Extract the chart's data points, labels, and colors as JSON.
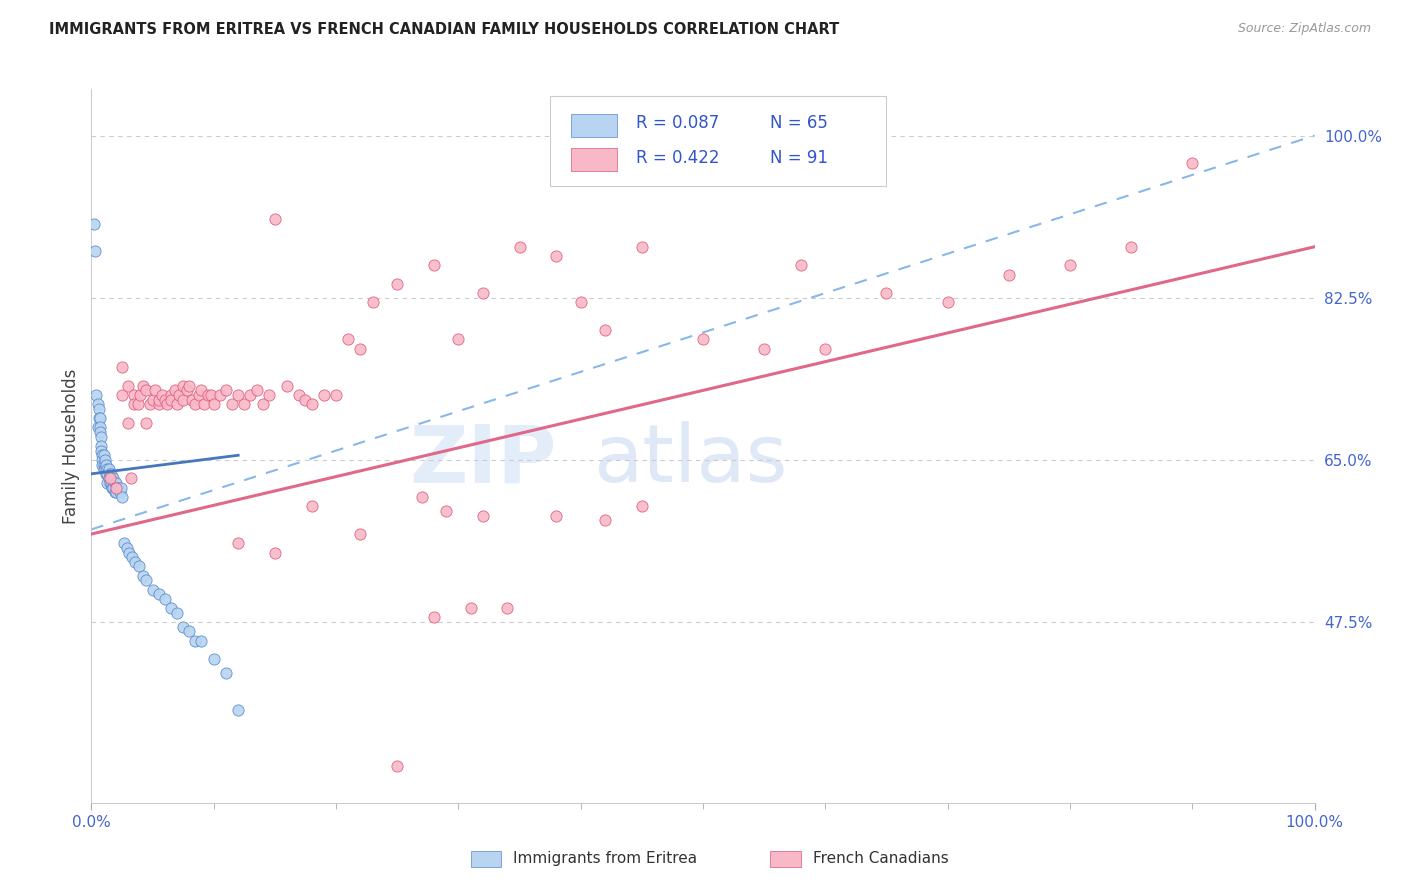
{
  "title": "IMMIGRANTS FROM ERITREA VS FRENCH CANADIAN FAMILY HOUSEHOLDS CORRELATION CHART",
  "source": "Source: ZipAtlas.com",
  "ylabel": "Family Households",
  "y_tick_labels_right": [
    "100.0%",
    "82.5%",
    "65.0%",
    "47.5%"
  ],
  "y_tick_positions_right": [
    1.0,
    0.825,
    0.65,
    0.475
  ],
  "x_tick_labels_left": "0.0%",
  "x_tick_labels_right": "100.0%",
  "legend_line1": "R = 0.087   N = 65",
  "legend_line2": "R = 0.422   N = 91",
  "color_blue_fill": "#b8d4f0",
  "color_blue_edge": "#5588cc",
  "color_pink_fill": "#f8b8c8",
  "color_pink_edge": "#e05878",
  "trendline_dashed_color": "#88b8e8",
  "trendline_solid_color": "#e06888",
  "trendline_blue_solid_color": "#4477bb",
  "watermark_zip": "ZIP",
  "watermark_atlas": "atlas",
  "watermark_color_zip": "#c8ddf0",
  "watermark_color_atlas": "#b8cce8",
  "legend_text_color": "#3355cc",
  "bottom_legend_label1": "Immigrants from Eritrea",
  "bottom_legend_label2": "French Canadians",
  "ylim_data_min": 0.28,
  "ylim_data_max": 1.0,
  "blue_x": [
    0.002,
    0.003,
    0.004,
    0.005,
    0.005,
    0.006,
    0.006,
    0.007,
    0.007,
    0.007,
    0.008,
    0.008,
    0.008,
    0.009,
    0.009,
    0.009,
    0.01,
    0.01,
    0.01,
    0.011,
    0.011,
    0.012,
    0.012,
    0.013,
    0.013,
    0.013,
    0.014,
    0.014,
    0.015,
    0.015,
    0.016,
    0.016,
    0.017,
    0.017,
    0.018,
    0.018,
    0.019,
    0.019,
    0.02,
    0.02,
    0.021,
    0.022,
    0.023,
    0.024,
    0.025,
    0.027,
    0.029,
    0.031,
    0.033,
    0.036,
    0.039,
    0.042,
    0.045,
    0.05,
    0.055,
    0.06,
    0.065,
    0.07,
    0.075,
    0.08,
    0.085,
    0.09,
    0.1,
    0.11,
    0.12
  ],
  "blue_y": [
    0.905,
    0.875,
    0.72,
    0.71,
    0.685,
    0.705,
    0.695,
    0.695,
    0.685,
    0.68,
    0.675,
    0.665,
    0.66,
    0.655,
    0.65,
    0.645,
    0.655,
    0.645,
    0.64,
    0.65,
    0.64,
    0.645,
    0.635,
    0.64,
    0.635,
    0.625,
    0.64,
    0.63,
    0.635,
    0.625,
    0.635,
    0.625,
    0.63,
    0.62,
    0.63,
    0.62,
    0.625,
    0.615,
    0.625,
    0.615,
    0.62,
    0.62,
    0.615,
    0.62,
    0.61,
    0.56,
    0.555,
    0.55,
    0.545,
    0.54,
    0.535,
    0.525,
    0.52,
    0.51,
    0.505,
    0.5,
    0.49,
    0.485,
    0.47,
    0.465,
    0.455,
    0.455,
    0.435,
    0.42,
    0.38
  ],
  "pink_x": [
    0.015,
    0.02,
    0.025,
    0.025,
    0.03,
    0.03,
    0.032,
    0.035,
    0.035,
    0.038,
    0.04,
    0.042,
    0.045,
    0.045,
    0.048,
    0.05,
    0.052,
    0.055,
    0.055,
    0.058,
    0.06,
    0.062,
    0.065,
    0.065,
    0.068,
    0.07,
    0.072,
    0.075,
    0.075,
    0.078,
    0.08,
    0.082,
    0.085,
    0.088,
    0.09,
    0.092,
    0.095,
    0.098,
    0.1,
    0.105,
    0.11,
    0.115,
    0.12,
    0.125,
    0.13,
    0.135,
    0.14,
    0.145,
    0.15,
    0.16,
    0.17,
    0.175,
    0.18,
    0.19,
    0.2,
    0.21,
    0.22,
    0.23,
    0.25,
    0.28,
    0.3,
    0.32,
    0.35,
    0.38,
    0.4,
    0.42,
    0.45,
    0.5,
    0.55,
    0.58,
    0.6,
    0.65,
    0.7,
    0.75,
    0.8,
    0.85,
    0.9,
    0.27,
    0.29,
    0.32,
    0.38,
    0.42,
    0.45,
    0.28,
    0.31,
    0.34,
    0.15,
    0.12,
    0.18,
    0.22,
    0.25
  ],
  "pink_y": [
    0.63,
    0.62,
    0.72,
    0.75,
    0.73,
    0.69,
    0.63,
    0.72,
    0.71,
    0.71,
    0.72,
    0.73,
    0.725,
    0.69,
    0.71,
    0.715,
    0.725,
    0.71,
    0.715,
    0.72,
    0.715,
    0.71,
    0.72,
    0.715,
    0.725,
    0.71,
    0.72,
    0.73,
    0.715,
    0.725,
    0.73,
    0.715,
    0.71,
    0.72,
    0.725,
    0.71,
    0.72,
    0.72,
    0.71,
    0.72,
    0.725,
    0.71,
    0.72,
    0.71,
    0.72,
    0.725,
    0.71,
    0.72,
    0.91,
    0.73,
    0.72,
    0.715,
    0.71,
    0.72,
    0.72,
    0.78,
    0.77,
    0.82,
    0.84,
    0.86,
    0.78,
    0.83,
    0.88,
    0.87,
    0.82,
    0.79,
    0.88,
    0.78,
    0.77,
    0.86,
    0.77,
    0.83,
    0.82,
    0.85,
    0.86,
    0.88,
    0.97,
    0.61,
    0.595,
    0.59,
    0.59,
    0.585,
    0.6,
    0.48,
    0.49,
    0.49,
    0.55,
    0.56,
    0.6,
    0.57,
    0.32
  ]
}
